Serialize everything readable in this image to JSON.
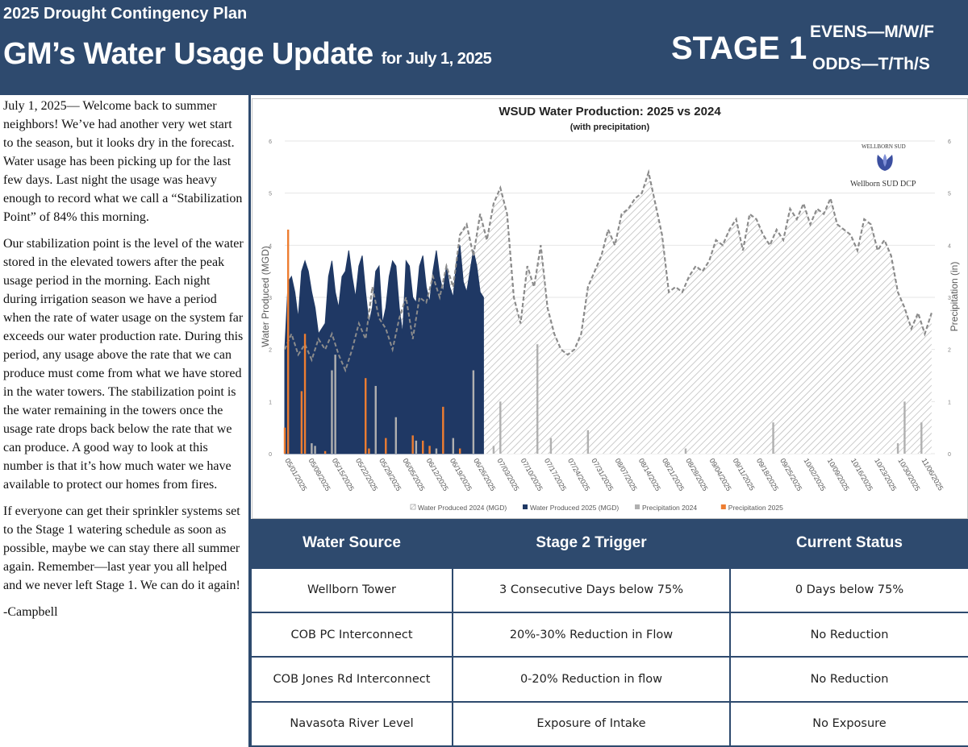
{
  "header": {
    "plan_title": "2025 Drought Contingency Plan",
    "main_title": "GM’s Water Usage Update",
    "date_text": "for July 1, 2025",
    "stage": "STAGE 1",
    "evens": "EVENS—M/W/F",
    "odds": "ODDS—T/Th/S",
    "background_color": "#2e4a6e"
  },
  "article": {
    "paragraphs": [
      "July 1, 2025— Welcome back to summer neighbors! We’ve had another very wet start to the season, but it looks dry in the forecast. Water usage has been picking up for the last few days. Last night the usage was heavy enough to record what we call a “Stabilization Point” of 84% this morning.",
      "Our stabilization point is the level of the water stored in the elevated towers after the peak usage period in the morning. Each night during irrigation season we have a period when the rate of water usage on the system far exceeds our water production rate. During this period, any usage above the rate that we can produce must come from what we have stored in the water towers. The stabilization point is the water remaining in the towers once the usage rate drops back below the rate that we can produce. A good way to look at this number is that it’s how much water we have available to protect our homes from fires.",
      "If everyone can get their sprinkler systems set to the Stage 1 watering schedule as soon as possible, maybe we can stay there all summer again. Remember—last year you all helped and we never left Stage 1. We can do it again!",
      "-Campbell"
    ]
  },
  "logo": {
    "arc_text": "WELLBORN SUD",
    "caption": "Wellborn SUD DCP"
  },
  "chart_data": {
    "type": "area",
    "title": "WSUD Water Production: 2025 vs 2024",
    "subtitle": "(with precipitation)",
    "ylabel": "Water Produced (MGD)",
    "y2label": "Precipitation (in)",
    "ylim": [
      0,
      6
    ],
    "y2lim": [
      0,
      6
    ],
    "yticks": [
      0,
      1,
      2,
      3,
      4,
      5,
      6
    ],
    "grid": true,
    "legend_position": "bottom",
    "x_tick_labels": [
      "05/01/2025",
      "05/08/2025",
      "05/15/2025",
      "05/22/2025",
      "05/29/2025",
      "06/05/2025",
      "06/12/2025",
      "06/19/2025",
      "06/26/2025",
      "07/03/2025",
      "07/10/2025",
      "07/17/2025",
      "07/24/2025",
      "07/31/2025",
      "08/07/2025",
      "08/14/2025",
      "08/21/2025",
      "08/28/2025",
      "09/04/2025",
      "09/11/2025",
      "09/18/2025",
      "09/25/2025",
      "10/02/2025",
      "10/09/2025",
      "10/16/2025",
      "10/23/2025",
      "10/30/2025",
      "11/06/2025"
    ],
    "x_start": "05/01/2025",
    "x_end": "11/10/2025",
    "series": [
      {
        "name": "Water Produced 2024 (MGD)",
        "kind": "area-hatched",
        "color": "#8a8a8a",
        "points": [
          [
            "05/01/2025",
            2.0
          ],
          [
            "05/03/2025",
            2.3
          ],
          [
            "05/05/2025",
            1.9
          ],
          [
            "05/07/2025",
            2.1
          ],
          [
            "05/09/2025",
            1.8
          ],
          [
            "05/11/2025",
            2.2
          ],
          [
            "05/13/2025",
            2.0
          ],
          [
            "05/15/2025",
            2.3
          ],
          [
            "05/17/2025",
            1.9
          ],
          [
            "05/19/2025",
            1.6
          ],
          [
            "05/21/2025",
            2.0
          ],
          [
            "05/23/2025",
            2.5
          ],
          [
            "05/25/2025",
            2.2
          ],
          [
            "05/27/2025",
            3.2
          ],
          [
            "05/29/2025",
            2.6
          ],
          [
            "05/31/2025",
            2.4
          ],
          [
            "06/02/2025",
            2.0
          ],
          [
            "06/04/2025",
            2.6
          ],
          [
            "06/06/2025",
            3.0
          ],
          [
            "06/08/2025",
            2.2
          ],
          [
            "06/10/2025",
            3.0
          ],
          [
            "06/12/2025",
            2.9
          ],
          [
            "06/14/2025",
            3.4
          ],
          [
            "06/16/2025",
            3.0
          ],
          [
            "06/18/2025",
            3.6
          ],
          [
            "06/20/2025",
            3.2
          ],
          [
            "06/22/2025",
            4.2
          ],
          [
            "06/24/2025",
            4.4
          ],
          [
            "06/26/2025",
            3.8
          ],
          [
            "06/28/2025",
            4.6
          ],
          [
            "06/30/2025",
            4.1
          ],
          [
            "07/02/2025",
            4.8
          ],
          [
            "07/04/2025",
            5.1
          ],
          [
            "07/06/2025",
            4.6
          ],
          [
            "07/08/2025",
            3.0
          ],
          [
            "07/10/2025",
            2.5
          ],
          [
            "07/12/2025",
            3.6
          ],
          [
            "07/14/2025",
            3.2
          ],
          [
            "07/16/2025",
            4.0
          ],
          [
            "07/18/2025",
            2.8
          ],
          [
            "07/20/2025",
            2.3
          ],
          [
            "07/22/2025",
            2.0
          ],
          [
            "07/24/2025",
            1.9
          ],
          [
            "07/26/2025",
            2.0
          ],
          [
            "07/28/2025",
            2.3
          ],
          [
            "07/30/2025",
            3.2
          ],
          [
            "08/01/2025",
            3.5
          ],
          [
            "08/03/2025",
            3.8
          ],
          [
            "08/05/2025",
            4.3
          ],
          [
            "08/07/2025",
            4.0
          ],
          [
            "08/09/2025",
            4.6
          ],
          [
            "08/11/2025",
            4.7
          ],
          [
            "08/13/2025",
            4.9
          ],
          [
            "08/15/2025",
            5.0
          ],
          [
            "08/17/2025",
            5.4
          ],
          [
            "08/19/2025",
            4.8
          ],
          [
            "08/21/2025",
            4.2
          ],
          [
            "08/23/2025",
            3.1
          ],
          [
            "08/25/2025",
            3.2
          ],
          [
            "08/27/2025",
            3.1
          ],
          [
            "08/29/2025",
            3.4
          ],
          [
            "08/31/2025",
            3.6
          ],
          [
            "09/02/2025",
            3.5
          ],
          [
            "09/04/2025",
            3.7
          ],
          [
            "09/06/2025",
            4.1
          ],
          [
            "09/08/2025",
            4.0
          ],
          [
            "09/10/2025",
            4.3
          ],
          [
            "09/12/2025",
            4.5
          ],
          [
            "09/14/2025",
            3.9
          ],
          [
            "09/16/2025",
            4.6
          ],
          [
            "09/18/2025",
            4.5
          ],
          [
            "09/20/2025",
            4.2
          ],
          [
            "09/22/2025",
            4.0
          ],
          [
            "09/24/2025",
            4.3
          ],
          [
            "09/26/2025",
            4.1
          ],
          [
            "09/28/2025",
            4.7
          ],
          [
            "09/30/2025",
            4.5
          ],
          [
            "10/02/2025",
            4.8
          ],
          [
            "10/04/2025",
            4.4
          ],
          [
            "10/06/2025",
            4.7
          ],
          [
            "10/08/2025",
            4.6
          ],
          [
            "10/10/2025",
            4.9
          ],
          [
            "10/12/2025",
            4.4
          ],
          [
            "10/14/2025",
            4.3
          ],
          [
            "10/16/2025",
            4.2
          ],
          [
            "10/18/2025",
            3.9
          ],
          [
            "10/20/2025",
            4.5
          ],
          [
            "10/22/2025",
            4.4
          ],
          [
            "10/24/2025",
            3.9
          ],
          [
            "10/26/2025",
            4.1
          ],
          [
            "10/28/2025",
            3.8
          ],
          [
            "10/30/2025",
            3.1
          ],
          [
            "11/01/2025",
            2.8
          ],
          [
            "11/03/2025",
            2.4
          ],
          [
            "11/05/2025",
            2.7
          ],
          [
            "11/07/2025",
            2.3
          ],
          [
            "11/09/2025",
            2.7
          ]
        ]
      },
      {
        "name": "Water Produced 2025 (MGD)",
        "kind": "area",
        "color": "#1f3864",
        "points": [
          [
            "05/01/2025",
            2.0
          ],
          [
            "05/02/2025",
            3.3
          ],
          [
            "05/03/2025",
            3.4
          ],
          [
            "05/04/2025",
            3.1
          ],
          [
            "05/05/2025",
            2.6
          ],
          [
            "05/06/2025",
            3.5
          ],
          [
            "05/07/2025",
            3.7
          ],
          [
            "05/08/2025",
            3.5
          ],
          [
            "05/09/2025",
            3.1
          ],
          [
            "05/10/2025",
            2.8
          ],
          [
            "05/11/2025",
            2.3
          ],
          [
            "05/12/2025",
            2.4
          ],
          [
            "05/13/2025",
            2.5
          ],
          [
            "05/14/2025",
            3.4
          ],
          [
            "05/15/2025",
            3.7
          ],
          [
            "05/16/2025",
            3.1
          ],
          [
            "05/17/2025",
            2.8
          ],
          [
            "05/18/2025",
            3.4
          ],
          [
            "05/19/2025",
            3.5
          ],
          [
            "05/20/2025",
            3.9
          ],
          [
            "05/21/2025",
            3.4
          ],
          [
            "05/22/2025",
            3.0
          ],
          [
            "05/23/2025",
            3.6
          ],
          [
            "05/24/2025",
            3.8
          ],
          [
            "05/25/2025",
            3.1
          ],
          [
            "05/26/2025",
            2.5
          ],
          [
            "05/27/2025",
            2.8
          ],
          [
            "05/28/2025",
            3.5
          ],
          [
            "05/29/2025",
            3.6
          ],
          [
            "05/30/2025",
            2.5
          ],
          [
            "05/31/2025",
            2.8
          ],
          [
            "06/01/2025",
            3.4
          ],
          [
            "06/02/2025",
            3.7
          ],
          [
            "06/03/2025",
            3.6
          ],
          [
            "06/04/2025",
            2.8
          ],
          [
            "06/05/2025",
            2.3
          ],
          [
            "06/06/2025",
            3.7
          ],
          [
            "06/07/2025",
            3.6
          ],
          [
            "06/08/2025",
            3.0
          ],
          [
            "06/09/2025",
            2.9
          ],
          [
            "06/10/2025",
            3.6
          ],
          [
            "06/11/2025",
            3.8
          ],
          [
            "06/12/2025",
            3.2
          ],
          [
            "06/13/2025",
            2.9
          ],
          [
            "06/14/2025",
            3.5
          ],
          [
            "06/15/2025",
            3.9
          ],
          [
            "06/16/2025",
            3.4
          ],
          [
            "06/17/2025",
            3.1
          ],
          [
            "06/18/2025",
            3.6
          ],
          [
            "06/19/2025",
            3.2
          ],
          [
            "06/20/2025",
            3.0
          ],
          [
            "06/21/2025",
            3.7
          ],
          [
            "06/22/2025",
            4.0
          ],
          [
            "06/23/2025",
            3.3
          ],
          [
            "06/24/2025",
            3.1
          ],
          [
            "06/25/2025",
            3.5
          ],
          [
            "06/26/2025",
            3.9
          ],
          [
            "06/27/2025",
            3.6
          ],
          [
            "06/28/2025",
            3.1
          ],
          [
            "06/29/2025",
            3.0
          ]
        ]
      },
      {
        "name": "Precipitation 2024",
        "kind": "bar",
        "color": "#b0b0b0",
        "points": [
          [
            "05/09/2025",
            0.2
          ],
          [
            "05/10/2025",
            0.15
          ],
          [
            "05/15/2025",
            1.6
          ],
          [
            "05/16/2025",
            1.9
          ],
          [
            "05/28/2025",
            1.3
          ],
          [
            "06/03/2025",
            0.7
          ],
          [
            "06/09/2025",
            0.25
          ],
          [
            "06/15/2025",
            0.1
          ],
          [
            "06/20/2025",
            0.3
          ],
          [
            "06/26/2025",
            1.6
          ],
          [
            "07/02/2025",
            0.15
          ],
          [
            "07/04/2025",
            1.0
          ],
          [
            "07/15/2025",
            2.1
          ],
          [
            "07/19/2025",
            0.3
          ],
          [
            "07/30/2025",
            0.45
          ],
          [
            "08/28/2025",
            0.1
          ],
          [
            "09/23/2025",
            0.6
          ],
          [
            "10/30/2025",
            0.2
          ],
          [
            "11/01/2025",
            1.0
          ],
          [
            "11/06/2025",
            0.6
          ]
        ]
      },
      {
        "name": "Precipitation 2025",
        "kind": "bar",
        "color": "#ed7d31",
        "points": [
          [
            "05/01/2025",
            0.5
          ],
          [
            "05/02/2025",
            4.3
          ],
          [
            "05/06/2025",
            1.2
          ],
          [
            "05/07/2025",
            2.3
          ],
          [
            "05/13/2025",
            0.05
          ],
          [
            "05/25/2025",
            1.45
          ],
          [
            "05/26/2025",
            0.1
          ],
          [
            "05/31/2025",
            0.3
          ],
          [
            "06/08/2025",
            0.35
          ],
          [
            "06/11/2025",
            0.25
          ],
          [
            "06/13/2025",
            0.15
          ],
          [
            "06/17/2025",
            0.9
          ],
          [
            "06/22/2025",
            0.1
          ]
        ]
      }
    ]
  },
  "table": {
    "headers": [
      "Water Source",
      "Stage 2 Trigger",
      "Current Status"
    ],
    "rows": [
      [
        "Wellborn Tower",
        "3 Consecutive Days below 75%",
        "0 Days below 75%"
      ],
      [
        "COB PC Interconnect",
        "20%-30% Reduction in Flow",
        "No Reduction"
      ],
      [
        "COB Jones Rd Interconnect",
        "0-20% Reduction in flow",
        "No Reduction"
      ],
      [
        "Navasota River Level",
        "Exposure of Intake",
        "No Exposure"
      ]
    ]
  }
}
